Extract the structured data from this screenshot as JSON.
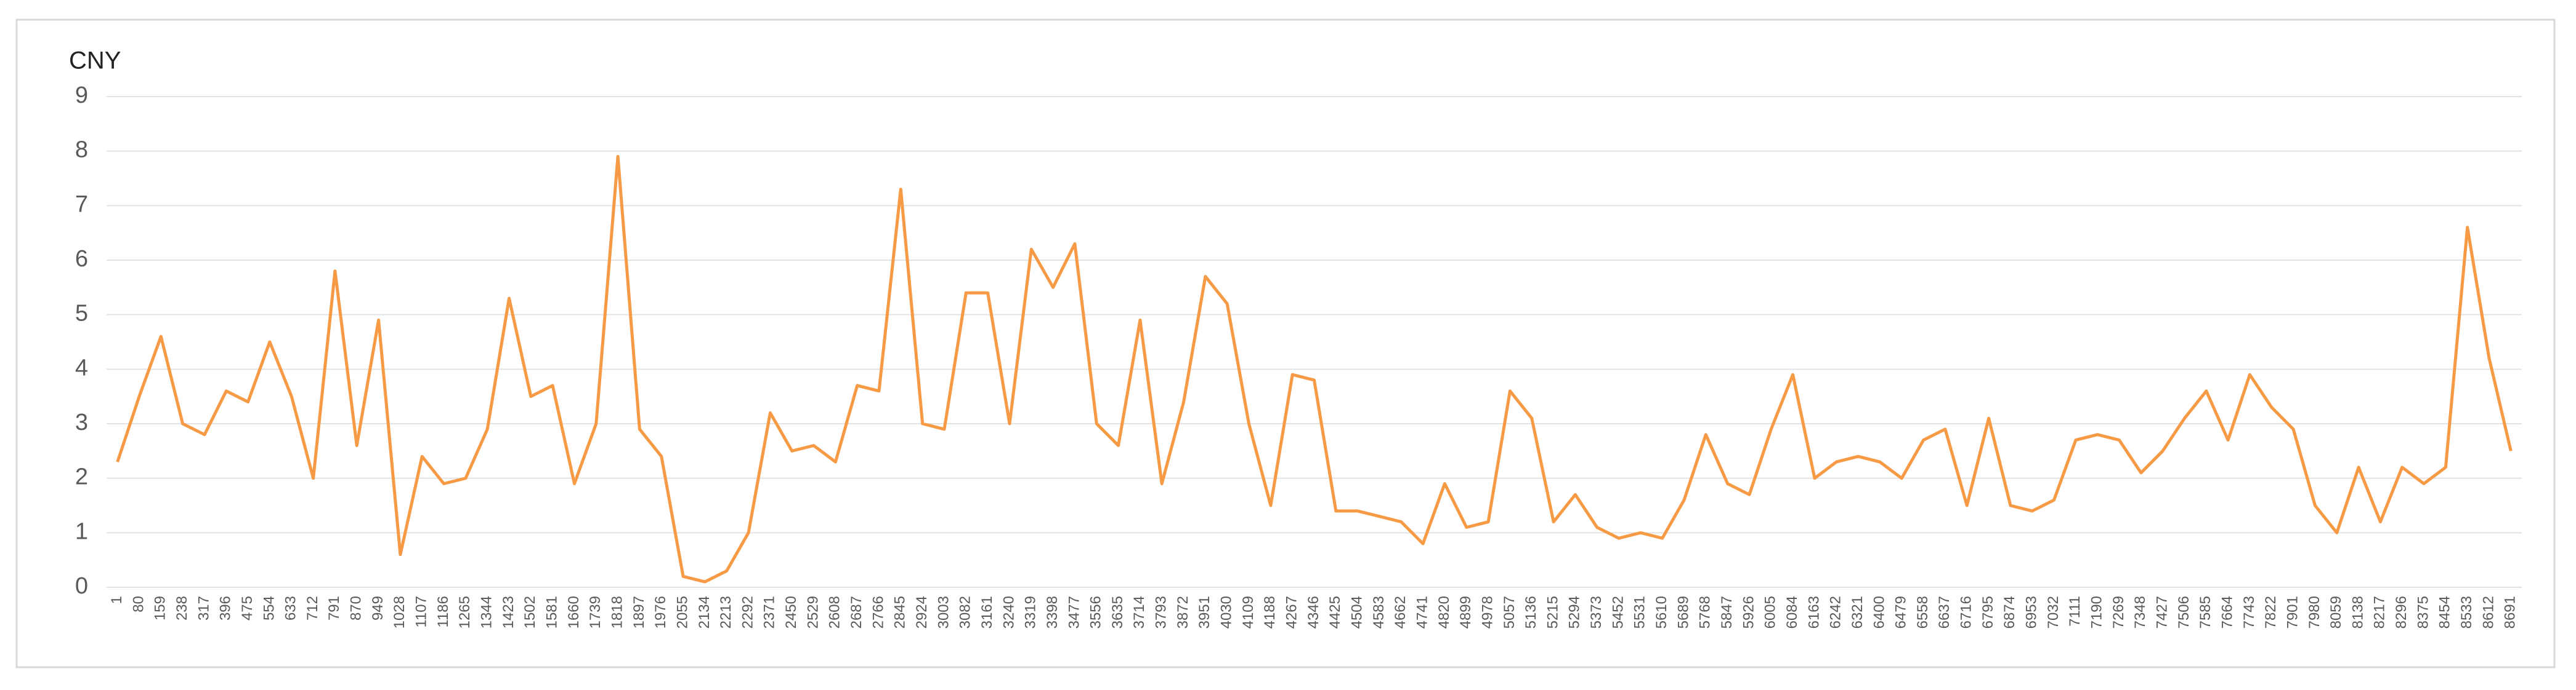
{
  "chart_data": {
    "type": "line",
    "title": "CNY",
    "categories": [
      "1",
      "80",
      "159",
      "238",
      "317",
      "396",
      "475",
      "554",
      "633",
      "712",
      "791",
      "870",
      "949",
      "1028",
      "1107",
      "1186",
      "1265",
      "1344",
      "1423",
      "1502",
      "1581",
      "1660",
      "1739",
      "1818",
      "1897",
      "1976",
      "2055",
      "2134",
      "2213",
      "2292",
      "2371",
      "2450",
      "2529",
      "2608",
      "2687",
      "2766",
      "2845",
      "2924",
      "3003",
      "3082",
      "3161",
      "3240",
      "3319",
      "3398",
      "3477",
      "3556",
      "3635",
      "3714",
      "3793",
      "3872",
      "3951",
      "4030",
      "4109",
      "4188",
      "4267",
      "4346",
      "4425",
      "4504",
      "4583",
      "4662",
      "4741",
      "4820",
      "4899",
      "4978",
      "5057",
      "5136",
      "5215",
      "5294",
      "5373",
      "5452",
      "5531",
      "5610",
      "5689",
      "5768",
      "5847",
      "5926",
      "6005",
      "6084",
      "6163",
      "6242",
      "6321",
      "6400",
      "6479",
      "6558",
      "6637",
      "6716",
      "6795",
      "6874",
      "6953",
      "7032",
      "7111",
      "7190",
      "7269",
      "7348",
      "7427",
      "7506",
      "7585",
      "7664",
      "7743",
      "7822",
      "7901",
      "7980",
      "8059",
      "8138",
      "8217",
      "8296",
      "8375",
      "8454",
      "8533",
      "8612",
      "8691"
    ],
    "values": [
      2.3,
      3.5,
      4.6,
      3.0,
      2.8,
      3.6,
      3.4,
      4.5,
      3.5,
      2.0,
      5.8,
      2.6,
      4.9,
      0.6,
      2.4,
      1.9,
      2.0,
      2.9,
      5.3,
      3.5,
      3.7,
      1.9,
      3.0,
      7.9,
      2.9,
      2.4,
      0.2,
      0.1,
      0.3,
      1.0,
      3.2,
      2.5,
      2.6,
      2.3,
      3.7,
      3.6,
      7.3,
      3.0,
      2.9,
      5.4,
      5.4,
      3.0,
      6.2,
      5.5,
      6.3,
      3.0,
      2.6,
      4.9,
      1.9,
      3.4,
      5.7,
      5.2,
      3.0,
      1.5,
      3.9,
      3.8,
      1.4,
      1.4,
      1.3,
      1.2,
      0.8,
      1.9,
      1.1,
      1.2,
      3.6,
      3.1,
      1.2,
      1.7,
      1.1,
      0.9,
      1.0,
      0.9,
      1.6,
      2.8,
      1.9,
      1.7,
      2.9,
      3.9,
      2.0,
      2.3,
      2.4,
      2.3,
      2.0,
      2.7,
      2.9,
      1.5,
      3.1,
      1.5,
      1.4,
      1.6,
      2.7,
      2.8,
      2.7,
      2.1,
      2.5,
      3.1,
      3.6,
      2.7,
      3.9,
      3.3,
      2.9,
      1.5,
      1.0,
      2.2,
      1.2,
      2.2,
      1.9,
      2.2,
      6.6,
      4.2,
      2.5
    ],
    "color": "#f79a45",
    "ylim": [
      0,
      9
    ],
    "yticks": [
      0,
      1,
      2,
      3,
      4,
      5,
      6,
      7,
      8,
      9
    ],
    "grid": true
  }
}
